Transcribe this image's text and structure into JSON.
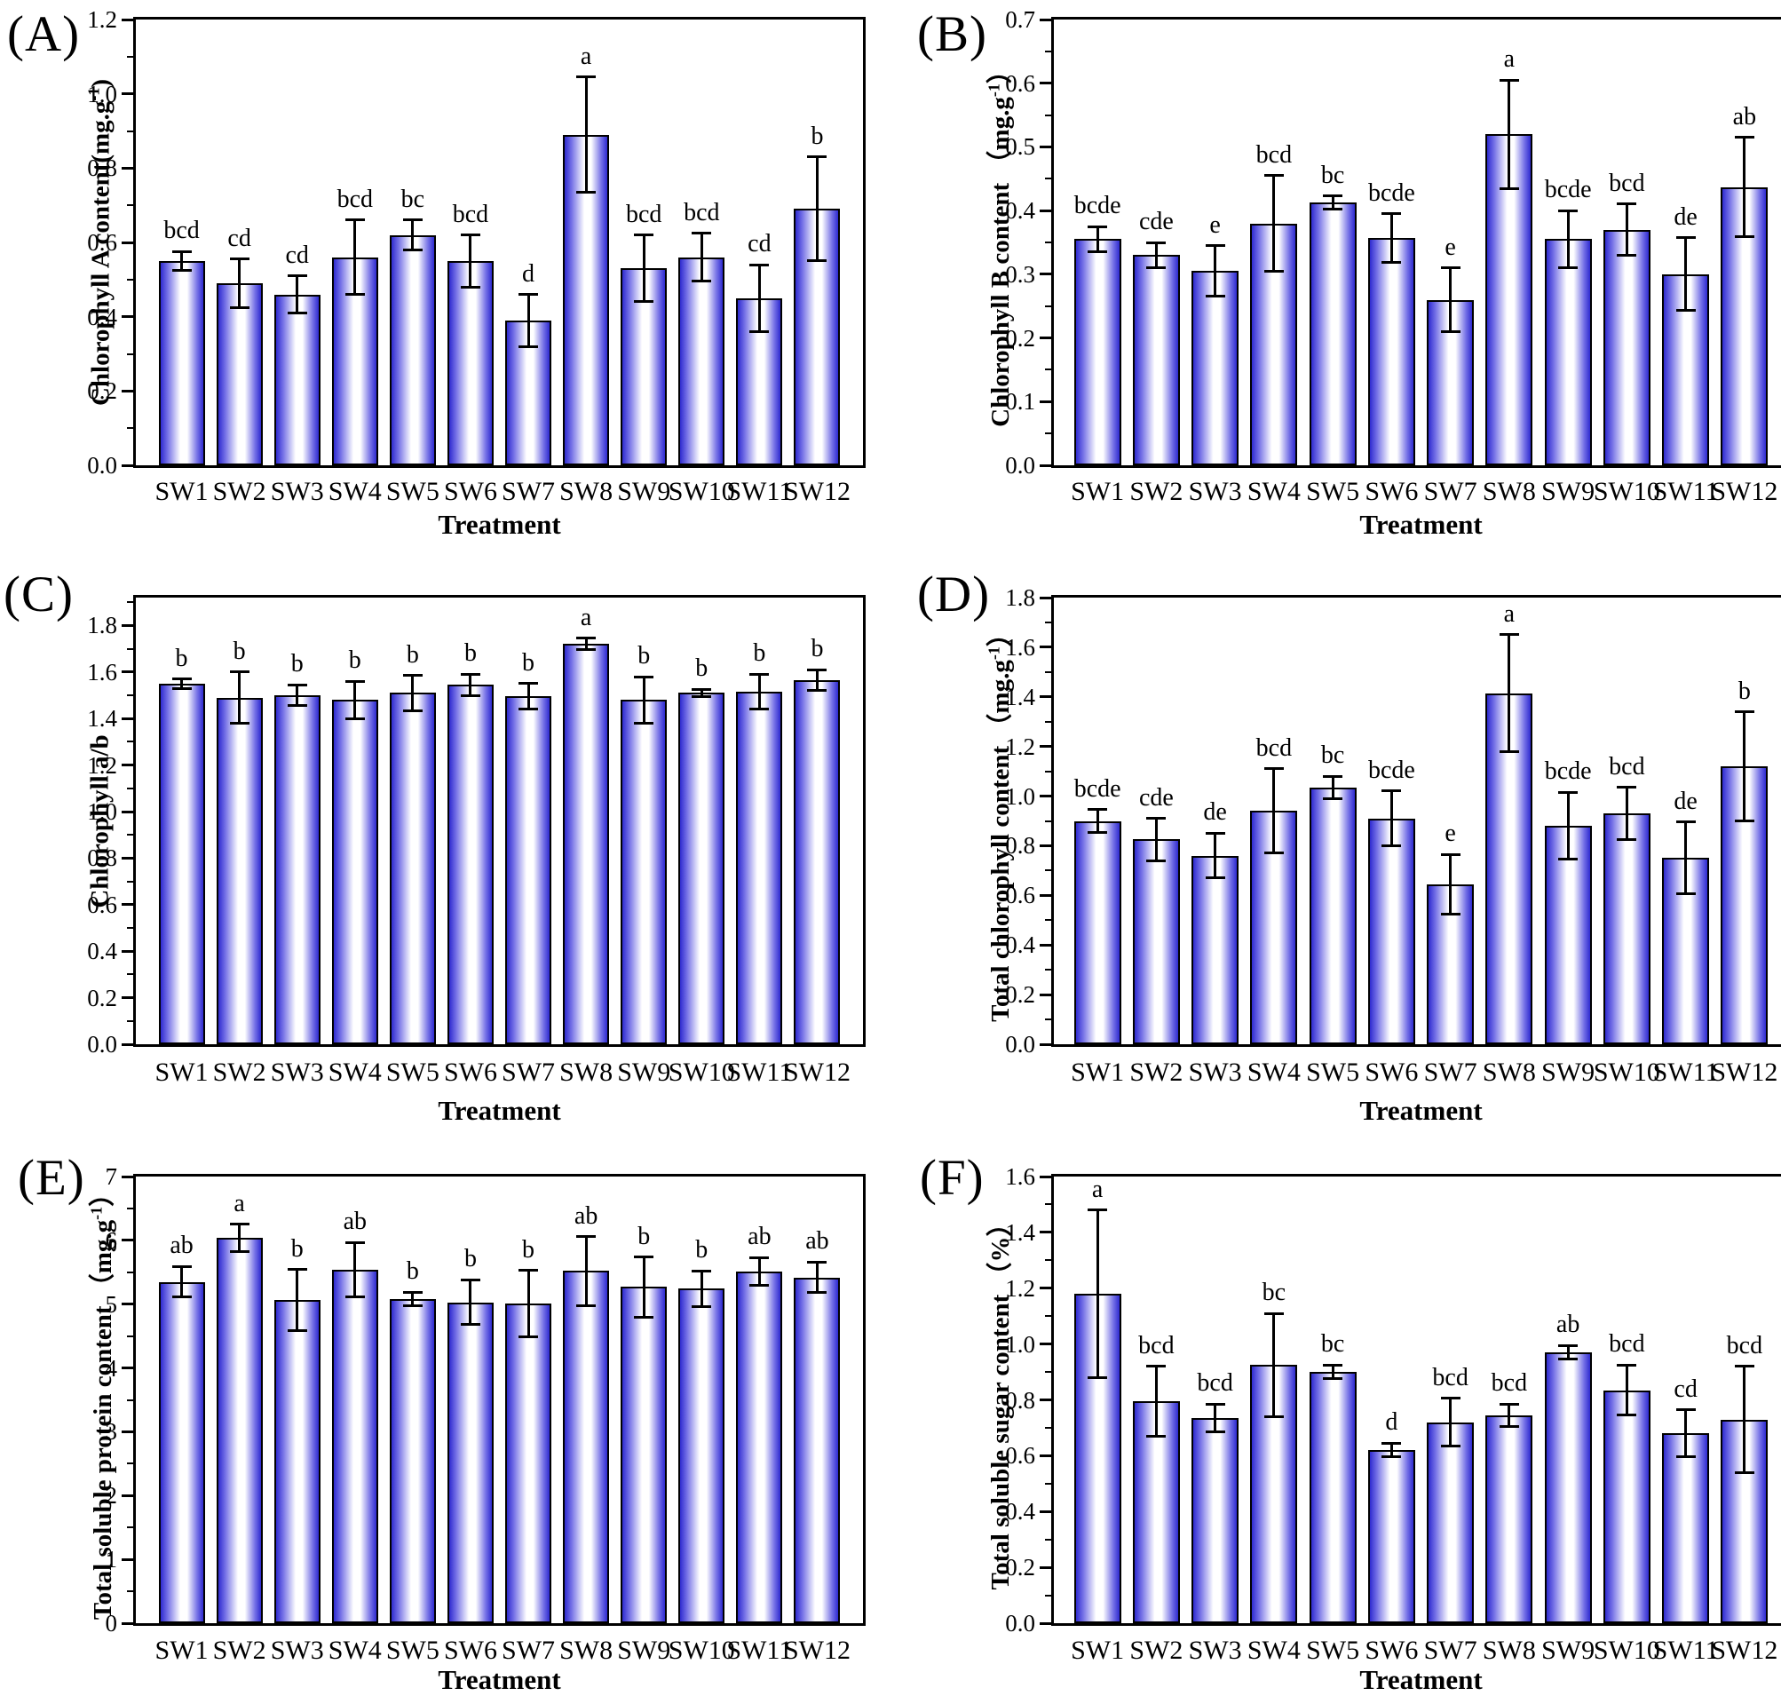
{
  "colors": {
    "bar_edge": "#000000",
    "bar_fill_dark": "#2f2bd0",
    "bar_fill_mid": "#7470e6",
    "bar_fill_light": "#ffffff",
    "error_bar": "#000000",
    "axis": "#000000"
  },
  "chart_data": [
    {
      "type": "bar",
      "tag": "(A)",
      "ylabel_prefix": "Chlorophyll A content(mg.g",
      "ylabel_sup": "-1",
      "ylabel_suffix": ")",
      "xlabel": "Treatment",
      "categories": [
        "SW1",
        "SW2",
        "SW3",
        "SW4",
        "SW5",
        "SW6",
        "SW7",
        "SW8",
        "SW9",
        "SW10",
        "SW11",
        "SW12"
      ],
      "values": [
        0.55,
        0.49,
        0.46,
        0.56,
        0.62,
        0.55,
        0.39,
        0.89,
        0.53,
        0.56,
        0.45,
        0.69
      ],
      "errors": [
        0.025,
        0.065,
        0.05,
        0.1,
        0.04,
        0.07,
        0.07,
        0.155,
        0.09,
        0.065,
        0.09,
        0.14
      ],
      "letters": [
        "bcd",
        "cd",
        "cd",
        "bcd",
        "bc",
        "bcd",
        "d",
        "a",
        "bcd",
        "bcd",
        "cd",
        "b"
      ],
      "ylim": [
        0,
        1.2
      ],
      "ytick_values": [
        0,
        0.2,
        0.4,
        0.6,
        0.8,
        1.0,
        1.2
      ],
      "ytick_labels": [
        "0.0",
        "0.2",
        "0.4",
        "0.6",
        "0.8",
        "1.0",
        "1.2"
      ],
      "yminor_step": 0.1,
      "grid": "off",
      "legend": "none"
    },
    {
      "type": "bar",
      "tag": "(B)",
      "ylabel_prefix": "Chlorophyll B content （mg.g",
      "ylabel_sup": "-1",
      "ylabel_suffix": "）",
      "xlabel": "Treatment",
      "categories": [
        "SW1",
        "SW2",
        "SW3",
        "SW4",
        "SW5",
        "SW6",
        "SW7",
        "SW8",
        "SW9",
        "SW10",
        "SW11",
        "SW12"
      ],
      "values": [
        0.355,
        0.33,
        0.305,
        0.38,
        0.413,
        0.357,
        0.26,
        0.52,
        0.355,
        0.37,
        0.3,
        0.437
      ],
      "errors": [
        0.02,
        0.02,
        0.04,
        0.075,
        0.01,
        0.038,
        0.05,
        0.085,
        0.045,
        0.04,
        0.057,
        0.078
      ],
      "letters": [
        "bcde",
        "cde",
        "e",
        "bcd",
        "bc",
        "bcde",
        "e",
        "a",
        "bcde",
        "bcd",
        "de",
        "ab"
      ],
      "ylim": [
        0,
        0.7
      ],
      "ytick_values": [
        0,
        0.1,
        0.2,
        0.3,
        0.4,
        0.5,
        0.6,
        0.7
      ],
      "ytick_labels": [
        "0.0",
        "0.1",
        "0.2",
        "0.3",
        "0.4",
        "0.5",
        "0.6",
        "0.7"
      ],
      "yminor_step": 0.05,
      "grid": "off",
      "legend": "none"
    },
    {
      "type": "bar",
      "tag": "(C)",
      "ylabel_prefix": "Chlorophyll a/b",
      "ylabel_sup": "",
      "ylabel_suffix": "",
      "xlabel": "Treatment",
      "categories": [
        "SW1",
        "SW2",
        "SW3",
        "SW4",
        "SW5",
        "SW6",
        "SW7",
        "SW8",
        "SW9",
        "SW10",
        "SW11",
        "SW12"
      ],
      "values": [
        1.55,
        1.49,
        1.5,
        1.48,
        1.51,
        1.545,
        1.495,
        1.72,
        1.48,
        1.51,
        1.515,
        1.565
      ],
      "errors": [
        0.02,
        0.11,
        0.045,
        0.08,
        0.075,
        0.045,
        0.055,
        0.025,
        0.1,
        0.015,
        0.075,
        0.045
      ],
      "letters": [
        "b",
        "b",
        "b",
        "b",
        "b",
        "b",
        "b",
        "a",
        "b",
        "b",
        "b",
        "b"
      ],
      "ylim": [
        0,
        1.92
      ],
      "ytick_values": [
        0,
        0.2,
        0.4,
        0.6,
        0.8,
        1.0,
        1.2,
        1.4,
        1.6,
        1.8
      ],
      "ytick_labels": [
        "0.0",
        "0.2",
        "0.4",
        "0.6",
        "0.8",
        "1.0",
        "1.2",
        "1.4",
        "1.6",
        "1.8"
      ],
      "yminor_step": 0.1,
      "grid": "off",
      "legend": "none"
    },
    {
      "type": "bar",
      "tag": "(D)",
      "ylabel_prefix": "Total chlorophyll content （mg.g",
      "ylabel_sup": "-1",
      "ylabel_suffix": "）",
      "xlabel": "Treatment",
      "categories": [
        "SW1",
        "SW2",
        "SW3",
        "SW4",
        "SW5",
        "SW6",
        "SW7",
        "SW8",
        "SW9",
        "SW10",
        "SW11",
        "SW12"
      ],
      "values": [
        0.9,
        0.825,
        0.76,
        0.94,
        1.035,
        0.91,
        0.645,
        1.415,
        0.88,
        0.93,
        0.75,
        1.12
      ],
      "errors": [
        0.045,
        0.085,
        0.09,
        0.17,
        0.045,
        0.11,
        0.12,
        0.235,
        0.135,
        0.105,
        0.145,
        0.22
      ],
      "letters": [
        "bcde",
        "cde",
        "de",
        "bcd",
        "bc",
        "bcde",
        "e",
        "a",
        "bcde",
        "bcd",
        "de",
        "b"
      ],
      "ylim": [
        0,
        1.8
      ],
      "ytick_values": [
        0,
        0.2,
        0.4,
        0.6,
        0.8,
        1.0,
        1.2,
        1.4,
        1.6,
        1.8
      ],
      "ytick_labels": [
        "0.0",
        "0.2",
        "0.4",
        "0.6",
        "0.8",
        "1.0",
        "1.2",
        "1.4",
        "1.6",
        "1.8"
      ],
      "yminor_step": 0.1,
      "grid": "off",
      "legend": "none"
    },
    {
      "type": "bar",
      "tag": "(E)",
      "ylabel_prefix": "Total soluble protein content （mg.g",
      "ylabel_sup": "-1",
      "ylabel_suffix": "）",
      "xlabel": "Treatment",
      "categories": [
        "SW1",
        "SW2",
        "SW3",
        "SW4",
        "SW5",
        "SW6",
        "SW7",
        "SW8",
        "SW9",
        "SW10",
        "SW11",
        "SW12"
      ],
      "values": [
        5.35,
        6.04,
        5.06,
        5.54,
        5.08,
        5.03,
        5.01,
        5.52,
        5.27,
        5.24,
        5.51,
        5.42
      ],
      "errors": [
        0.24,
        0.21,
        0.48,
        0.43,
        0.11,
        0.35,
        0.52,
        0.54,
        0.47,
        0.28,
        0.22,
        0.24
      ],
      "letters": [
        "ab",
        "a",
        "b",
        "ab",
        "b",
        "b",
        "b",
        "ab",
        "b",
        "b",
        "ab",
        "ab"
      ],
      "ylim": [
        0,
        7
      ],
      "ytick_values": [
        0,
        1,
        2,
        3,
        4,
        5,
        6,
        7
      ],
      "ytick_labels": [
        "0",
        "1",
        "2",
        "3",
        "4",
        "5",
        "6",
        "7"
      ],
      "yminor_step": 0.5,
      "grid": "off",
      "legend": "none"
    },
    {
      "type": "bar",
      "tag": "(F)",
      "ylabel_prefix": "Total soluble sugar content （%）",
      "ylabel_sup": "",
      "ylabel_suffix": "",
      "xlabel": "Treatment",
      "categories": [
        "SW1",
        "SW2",
        "SW3",
        "SW4",
        "SW5",
        "SW6",
        "SW7",
        "SW8",
        "SW9",
        "SW10",
        "SW11",
        "SW12"
      ],
      "values": [
        1.18,
        0.795,
        0.735,
        0.925,
        0.9,
        0.62,
        0.72,
        0.745,
        0.97,
        0.835,
        0.68,
        0.73
      ],
      "errors": [
        0.3,
        0.125,
        0.05,
        0.185,
        0.025,
        0.025,
        0.085,
        0.04,
        0.025,
        0.09,
        0.085,
        0.19
      ],
      "letters": [
        "a",
        "bcd",
        "bcd",
        "bc",
        "bc",
        "d",
        "bcd",
        "bcd",
        "ab",
        "bcd",
        "cd",
        "bcd"
      ],
      "ylim": [
        0,
        1.6
      ],
      "ytick_values": [
        0,
        0.2,
        0.4,
        0.6,
        0.8,
        1.0,
        1.2,
        1.4,
        1.6
      ],
      "ytick_labels": [
        "0.0",
        "0.2",
        "0.4",
        "0.6",
        "0.8",
        "1.0",
        "1.2",
        "1.4",
        "1.6"
      ],
      "yminor_step": 0.1,
      "grid": "off",
      "legend": "none"
    }
  ]
}
